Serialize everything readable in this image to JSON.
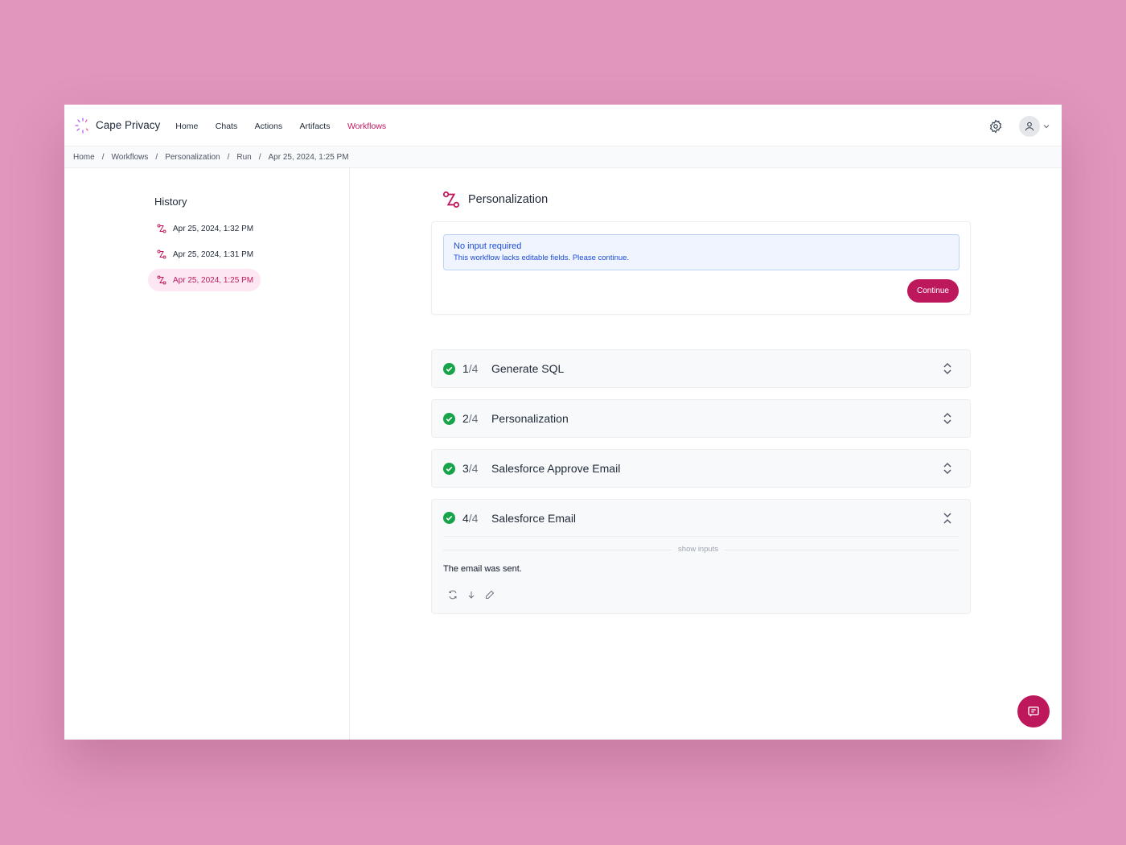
{
  "app": {
    "name": "Cape Privacy",
    "accent": "#be185d"
  },
  "nav": {
    "items": [
      "Home",
      "Chats",
      "Actions",
      "Artifacts",
      "Workflows"
    ],
    "active": "Workflows"
  },
  "breadcrumb": [
    "Home",
    "Workflows",
    "Personalization",
    "Run",
    "Apr 25, 2024, 1:25 PM"
  ],
  "sidebar": {
    "title": "History",
    "items": [
      {
        "label": "Apr 25, 2024, 1:32 PM"
      },
      {
        "label": "Apr 25, 2024, 1:31 PM"
      },
      {
        "label": "Apr 25, 2024, 1:25 PM",
        "selected": true
      }
    ]
  },
  "main": {
    "title": "Personalization",
    "alert": {
      "title": "No input required",
      "message": "This workflow lacks editable fields. Please continue."
    },
    "continue_label": "Continue",
    "total": "/4",
    "steps": [
      {
        "n": "1",
        "name": "Generate SQL",
        "status": "complete"
      },
      {
        "n": "2",
        "name": "Personalization",
        "status": "complete"
      },
      {
        "n": "3",
        "name": "Salesforce Approve Email",
        "status": "complete"
      },
      {
        "n": "4",
        "name": "Salesforce Email",
        "status": "complete",
        "expanded": true,
        "show_inputs": "show inputs",
        "output": "The email was sent."
      }
    ]
  }
}
